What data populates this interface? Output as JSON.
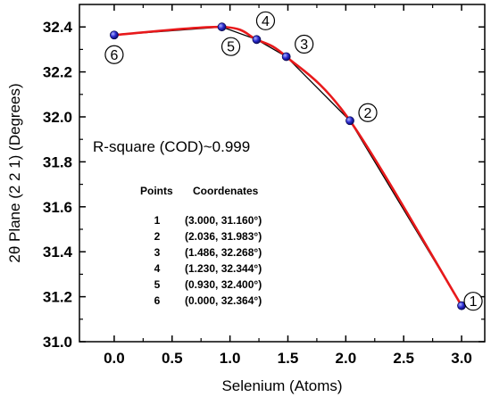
{
  "chart_data": {
    "type": "line",
    "title": "",
    "xlabel": "Selenium (Atoms)",
    "ylabel": "2θ Plane (2 2 1) (Degrees)",
    "xlim": [
      -0.3,
      3.2
    ],
    "ylim": [
      31.0,
      32.5
    ],
    "x_ticks": [
      "0.0",
      "0.5",
      "1.0",
      "1.5",
      "2.0",
      "2.5",
      "3.0"
    ],
    "y_ticks": [
      "31.0",
      "31.2",
      "31.4",
      "31.6",
      "31.8",
      "32.0",
      "32.2",
      "32.4"
    ],
    "grid": false,
    "points": [
      {
        "x": 3.0,
        "y": 31.16,
        "label": "1"
      },
      {
        "x": 2.036,
        "y": 31.983,
        "label": "2"
      },
      {
        "x": 1.486,
        "y": 32.268,
        "label": "3"
      },
      {
        "x": 1.23,
        "y": 32.344,
        "label": "4"
      },
      {
        "x": 0.93,
        "y": 32.4,
        "label": "5"
      },
      {
        "x": 0.0,
        "y": 32.364,
        "label": "6"
      }
    ],
    "fit_color": "#e8191b",
    "line_color": "#000000",
    "marker_color": "#2a2ad0",
    "annotation": "R-square (COD)~0.999",
    "table": {
      "header_points": "Points",
      "header_coords": "Coordenates",
      "rows": [
        {
          "n": "1",
          "coord": "(3.000, 31.160°)"
        },
        {
          "n": "2",
          "coord": "(2.036, 31.983°)"
        },
        {
          "n": "3",
          "coord": "(1.486, 32.268°)"
        },
        {
          "n": "4",
          "coord": "(1.230, 32.344°)"
        },
        {
          "n": "5",
          "coord": "(0.930, 32.400°)"
        },
        {
          "n": "6",
          "coord": "(0.000, 32.364°)"
        }
      ]
    }
  }
}
